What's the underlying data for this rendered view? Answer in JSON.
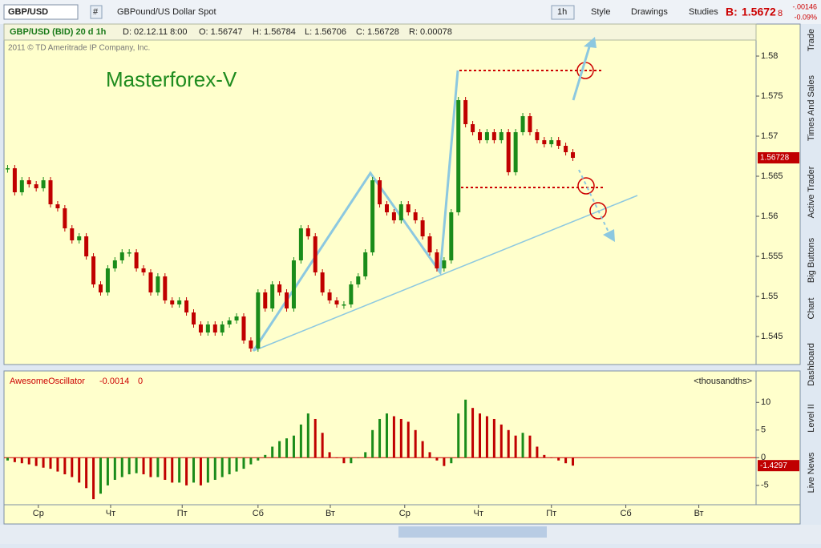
{
  "toolbar": {
    "symbol": "GBP/USD",
    "hash": "#",
    "description": "GBPound/US Dollar Spot",
    "period": "1h",
    "style": "Style",
    "drawings": "Drawings",
    "studies": "Studies",
    "bid_prefix": "B:",
    "bid": "1.5672",
    "bid_tail": "8",
    "change": "-.00146",
    "change_pct": "-0.09%"
  },
  "header": {
    "name": "GBP/USD (BID) 20 d 1h",
    "date": "D: 02.12.11 8:00",
    "open": "O: 1.56747",
    "high": "H: 1.56784",
    "low": "L: 1.56706",
    "close": "C: 1.56728",
    "range": "R: 0.00078"
  },
  "copyright": "2011 © TD Ameritrade IP Company, Inc.",
  "annotation": "Masterforex-V",
  "study": {
    "name": "AwesomeOscillator",
    "value": "-0.0014",
    "zero": "0",
    "units": "<thousandths>"
  },
  "side_tabs": [
    "Trade",
    "Times And Sales",
    "Active Trader",
    "Big Buttons",
    "Chart",
    "Dashboard",
    "Level II",
    "Live News"
  ],
  "chart_data": [
    {
      "type": "candlestick",
      "up_color": "#1a8c1a",
      "down_color": "#c00000",
      "xlim": [
        -0.5,
        104.6
      ],
      "ylim": [
        1.5415,
        1.582
      ],
      "yticks": [
        1.545,
        1.55,
        1.555,
        1.56,
        1.565,
        1.57,
        1.575,
        1.58
      ],
      "last_label": "1.56728",
      "values": [
        1.566,
        1.563,
        1.5645,
        1.564,
        1.5635,
        1.5645,
        1.5615,
        1.561,
        1.5585,
        1.557,
        1.5575,
        1.555,
        1.5515,
        1.5505,
        1.5535,
        1.5545,
        1.5555,
        1.5555,
        1.5535,
        1.553,
        1.5505,
        1.5525,
        1.5495,
        1.549,
        1.5495,
        1.548,
        1.5465,
        1.5455,
        1.5465,
        1.5455,
        1.5465,
        1.547,
        1.5475,
        1.5445,
        1.5435,
        1.5505,
        1.5485,
        1.5515,
        1.5505,
        1.5485,
        1.5545,
        1.5585,
        1.5575,
        1.553,
        1.5505,
        1.5495,
        1.549,
        1.549,
        1.5515,
        1.5525,
        1.5555,
        1.5645,
        1.5615,
        1.5605,
        1.5595,
        1.5615,
        1.5605,
        1.5595,
        1.5575,
        1.5555,
        1.5535,
        1.5545,
        1.5605,
        1.5745,
        1.5715,
        1.5705,
        1.5695,
        1.5705,
        1.5695,
        1.5705,
        1.5655,
        1.5705,
        1.5725,
        1.5705,
        1.5695,
        1.569,
        1.5695,
        1.5688,
        1.568,
        1.5673
      ]
    },
    {
      "type": "bar",
      "up_color": "#1a8c1a",
      "down_color": "#c00000",
      "xlim": [
        -0.5,
        104.6
      ],
      "ylim": [
        -8.5,
        12.5
      ],
      "yticks": [
        10,
        5,
        0,
        -5
      ],
      "last_label": "-1.4297",
      "xticks": [
        {
          "value": 4.3,
          "label": "Ср"
        },
        {
          "value": 14.4,
          "label": "Чт"
        },
        {
          "value": 24.4,
          "label": "Пт"
        },
        {
          "value": 35,
          "label": "Сб"
        },
        {
          "value": 45.1,
          "label": "Вт"
        },
        {
          "value": 55.5,
          "label": "Ср"
        },
        {
          "value": 65.8,
          "label": "Чт"
        },
        {
          "value": 76,
          "label": "Пт"
        },
        {
          "value": 86.4,
          "label": "Сб"
        },
        {
          "value": 96.6,
          "label": "Вт"
        }
      ],
      "values": [
        -0.5,
        -0.8,
        -1,
        -1.2,
        -1.5,
        -1.8,
        -2,
        -2.5,
        -3,
        -3.5,
        -4.5,
        -5.5,
        -7.5,
        -6.5,
        -5,
        -4,
        -3.5,
        -3,
        -2.8,
        -3,
        -3.5,
        -3.5,
        -4,
        -4.5,
        -4.5,
        -5,
        -4.5,
        -5,
        -4.5,
        -4,
        -3.5,
        -3,
        -2.5,
        -2,
        -1.2,
        -0.5,
        0.5,
        2,
        3,
        3.5,
        4,
        6,
        8,
        7,
        4.5,
        1,
        0,
        -1,
        -1,
        0,
        1,
        5,
        7,
        8,
        7.5,
        7,
        6.5,
        5,
        3,
        1,
        -0.5,
        -1.5,
        -1,
        8,
        10.5,
        9,
        8,
        7.5,
        7,
        6,
        5,
        4,
        4.5,
        4,
        2,
        0.5,
        0,
        -0.5,
        -1,
        -1.43
      ]
    }
  ]
}
